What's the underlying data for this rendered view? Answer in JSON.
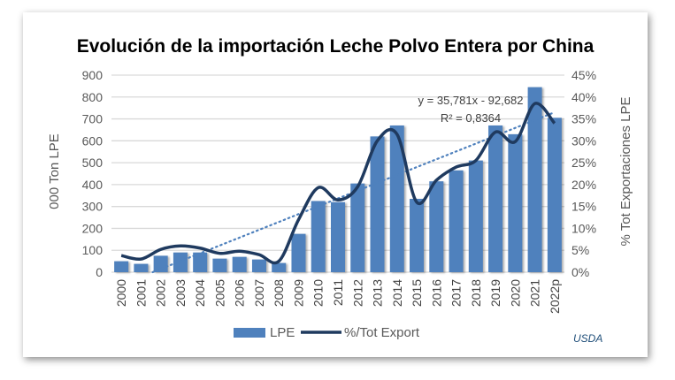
{
  "chart_data": {
    "type": "bar+line",
    "title": "Evolución de la importación Leche Polvo Entera por China",
    "ylabel": "000 Ton LPE",
    "y2label": "% Tot Exportaciones LPE",
    "ylim": [
      0,
      900
    ],
    "y2lim": [
      0,
      45
    ],
    "yticks": [
      "0",
      "100",
      "200",
      "300",
      "400",
      "500",
      "600",
      "700",
      "800",
      "900"
    ],
    "y2ticks": [
      "0%",
      "5%",
      "10%",
      "15%",
      "20%",
      "25%",
      "30%",
      "35%",
      "40%",
      "45%"
    ],
    "categories": [
      "2000",
      "2001",
      "2002",
      "2003",
      "2004",
      "2005",
      "2006",
      "2007",
      "2008",
      "2009",
      "2010",
      "2011",
      "2012",
      "2013",
      "2014",
      "2015",
      "2016",
      "2017",
      "2018",
      "2019",
      "2020",
      "2021",
      "2022p"
    ],
    "series": [
      {
        "name": "LPE",
        "type": "bar",
        "axis": "left",
        "color": "#4f81bd",
        "values": [
          50,
          38,
          75,
          90,
          90,
          62,
          70,
          58,
          42,
          175,
          325,
          320,
          405,
          620,
          670,
          335,
          415,
          465,
          510,
          670,
          630,
          845,
          705
        ]
      },
      {
        "name": "%/Tot Export",
        "type": "line",
        "axis": "right",
        "color": "#1f3a5f",
        "values": [
          3.8,
          3.0,
          5.2,
          6.0,
          5.5,
          4.3,
          4.8,
          4.0,
          2.5,
          12.0,
          19.3,
          16.5,
          19.5,
          30.0,
          31.5,
          16.0,
          21.0,
          24.0,
          25.5,
          32.0,
          29.8,
          38.5,
          34.0
        ]
      }
    ],
    "trendline": {
      "equation": "y = 35,781x - 92,682",
      "r2": "R² = 0,8364",
      "slope": 35.781,
      "intercept": -92.682,
      "color": "#4f81bd"
    },
    "grid": true,
    "legend": "bottom",
    "source": "USDA"
  }
}
